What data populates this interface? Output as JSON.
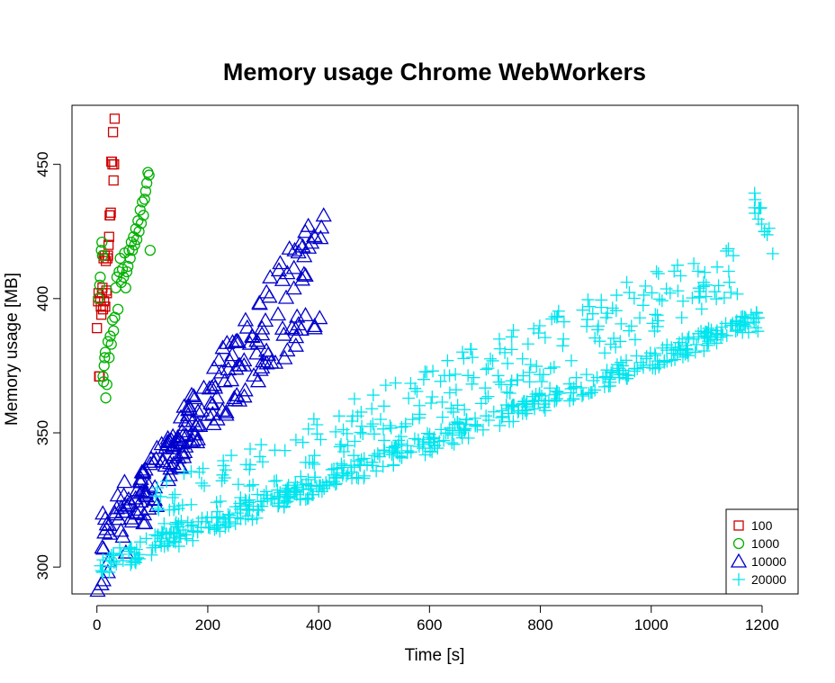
{
  "chart_data": {
    "type": "scatter",
    "title": "Memory usage Chrome  WebWorkers",
    "xlabel": "Time [s]",
    "ylabel": "Memory usage [MB]",
    "xlim": [
      -45,
      1265
    ],
    "ylim": [
      290,
      472
    ],
    "xticks": [
      0,
      200,
      400,
      600,
      800,
      1000,
      1200
    ],
    "yticks": [
      300,
      350,
      400,
      450
    ],
    "legend_position": "bottom-right",
    "grid": false,
    "series": [
      {
        "name": "100",
        "marker": "square",
        "color": "#cd0000",
        "x_range": [
          0,
          35
        ],
        "points": [
          [
            0,
            389
          ],
          [
            2,
            399
          ],
          [
            3,
            402
          ],
          [
            4,
            371
          ],
          [
            5,
            371
          ],
          [
            6,
            400
          ],
          [
            7,
            397
          ],
          [
            8,
            394
          ],
          [
            9,
            402
          ],
          [
            10,
            404
          ],
          [
            11,
            396
          ],
          [
            12,
            415
          ],
          [
            13,
            399
          ],
          [
            14,
            416
          ],
          [
            15,
            397
          ],
          [
            16,
            414
          ],
          [
            17,
            403
          ],
          [
            18,
            402
          ],
          [
            19,
            415
          ],
          [
            20,
            416
          ],
          [
            21,
            420
          ],
          [
            22,
            423
          ],
          [
            23,
            431
          ],
          [
            24,
            431
          ],
          [
            25,
            432
          ],
          [
            26,
            451
          ],
          [
            27,
            451
          ],
          [
            28,
            450
          ],
          [
            29,
            462
          ],
          [
            30,
            444
          ],
          [
            31,
            450
          ],
          [
            32,
            467
          ]
        ]
      },
      {
        "name": "1000",
        "marker": "circle",
        "color": "#00b000",
        "x_range": [
          0,
          100
        ],
        "points": [
          [
            3,
            400
          ],
          [
            5,
            405
          ],
          [
            6,
            408
          ],
          [
            8,
            418
          ],
          [
            9,
            421
          ],
          [
            10,
            416
          ],
          [
            11,
            371
          ],
          [
            12,
            369
          ],
          [
            13,
            375
          ],
          [
            14,
            378
          ],
          [
            15,
            380
          ],
          [
            16,
            363
          ],
          [
            18,
            368
          ],
          [
            20,
            384
          ],
          [
            22,
            378
          ],
          [
            24,
            386
          ],
          [
            26,
            383
          ],
          [
            28,
            392
          ],
          [
            30,
            388
          ],
          [
            32,
            393
          ],
          [
            34,
            404
          ],
          [
            36,
            408
          ],
          [
            38,
            396
          ],
          [
            40,
            410
          ],
          [
            42,
            415
          ],
          [
            44,
            406
          ],
          [
            46,
            411
          ],
          [
            48,
            408
          ],
          [
            50,
            417
          ],
          [
            52,
            404
          ],
          [
            54,
            410
          ],
          [
            56,
            412
          ],
          [
            58,
            418
          ],
          [
            60,
            415
          ],
          [
            62,
            421
          ],
          [
            64,
            418
          ],
          [
            66,
            423
          ],
          [
            68,
            420
          ],
          [
            70,
            426
          ],
          [
            72,
            422
          ],
          [
            74,
            429
          ],
          [
            76,
            425
          ],
          [
            78,
            433
          ],
          [
            80,
            428
          ],
          [
            82,
            436
          ],
          [
            84,
            431
          ],
          [
            86,
            437
          ],
          [
            88,
            440
          ],
          [
            90,
            443
          ],
          [
            92,
            447
          ],
          [
            94,
            446
          ],
          [
            96,
            418
          ]
        ]
      },
      {
        "name": "10000",
        "marker": "triangle",
        "color": "#0000cd",
        "x_range": [
          0,
          420
        ],
        "bands": [
          {
            "x0": 0,
            "y0": 300,
            "x1": 410,
            "y1": 428,
            "count": 150,
            "spread": 11
          },
          {
            "x0": 10,
            "y0": 318,
            "x1": 410,
            "y1": 398,
            "count": 80,
            "spread": 6
          }
        ]
      },
      {
        "name": "20000",
        "marker": "plus",
        "color": "#00e5ee",
        "x_range": [
          0,
          1220
        ],
        "bands": [
          {
            "x0": 0,
            "y0": 300,
            "x1": 1195,
            "y1": 392,
            "count": 480,
            "spread": 4
          },
          {
            "x0": 100,
            "y0": 318,
            "x1": 1160,
            "y1": 413,
            "count": 280,
            "spread": 12
          },
          {
            "x0": 1185,
            "y0": 436,
            "x1": 1220,
            "y1": 420,
            "count": 14,
            "spread": 4
          }
        ]
      }
    ]
  }
}
